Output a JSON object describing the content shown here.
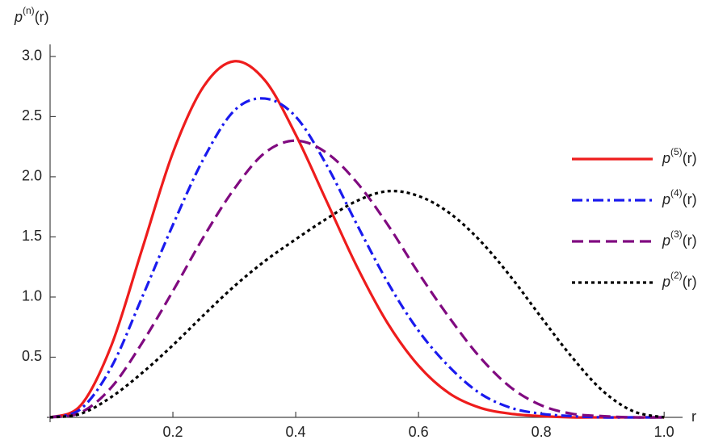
{
  "chart_data": {
    "type": "line",
    "y_label": "p(n)(r)",
    "x_label": "r",
    "x": [
      0,
      0.05,
      0.1,
      0.15,
      0.2,
      0.25,
      0.3,
      0.35,
      0.4,
      0.45,
      0.5,
      0.55,
      0.6,
      0.65,
      0.7,
      0.75,
      0.8,
      0.85,
      0.9,
      0.95,
      1.0
    ],
    "series": [
      {
        "name": "p(5)(r)",
        "color": "#ee1c1c",
        "dash": "solid",
        "values": [
          0,
          0.1,
          0.6,
          1.4,
          2.2,
          2.75,
          2.96,
          2.8,
          2.35,
          1.8,
          1.25,
          0.78,
          0.43,
          0.2,
          0.08,
          0.03,
          0.01,
          0,
          0,
          0,
          0
        ]
      },
      {
        "name": "p(4)(r)",
        "color": "#1a1aee",
        "dash": "dashdot",
        "values": [
          0,
          0.07,
          0.42,
          1.0,
          1.6,
          2.15,
          2.55,
          2.65,
          2.5,
          2.1,
          1.6,
          1.12,
          0.72,
          0.42,
          0.2,
          0.08,
          0.03,
          0.01,
          0,
          0,
          0
        ]
      },
      {
        "name": "p(3)(r)",
        "color": "#800a80",
        "dash": "dashed",
        "values": [
          0,
          0.04,
          0.25,
          0.62,
          1.05,
          1.5,
          1.9,
          2.2,
          2.3,
          2.2,
          1.95,
          1.6,
          1.2,
          0.83,
          0.5,
          0.25,
          0.1,
          0.03,
          0.01,
          0,
          0
        ]
      },
      {
        "name": "p(2)(r)",
        "color": "#000000",
        "dash": "dotted",
        "values": [
          0,
          0.03,
          0.17,
          0.37,
          0.6,
          0.85,
          1.09,
          1.3,
          1.48,
          1.65,
          1.8,
          1.88,
          1.84,
          1.7,
          1.47,
          1.17,
          0.83,
          0.5,
          0.22,
          0.05,
          0
        ]
      }
    ],
    "xlim": [
      0,
      1.03
    ],
    "ylim": [
      0,
      3.1
    ],
    "xticks": [
      0.2,
      0.4,
      0.6,
      0.8,
      {
        "value": 1,
        "label": "1.0"
      }
    ],
    "yticks": [
      0.5,
      {
        "value": 1,
        "label": "1.0"
      },
      1.5,
      {
        "value": 2,
        "label": "2.0"
      },
      2.5,
      {
        "value": 3,
        "label": "3.0"
      }
    ],
    "grid": false,
    "legend": "right"
  }
}
